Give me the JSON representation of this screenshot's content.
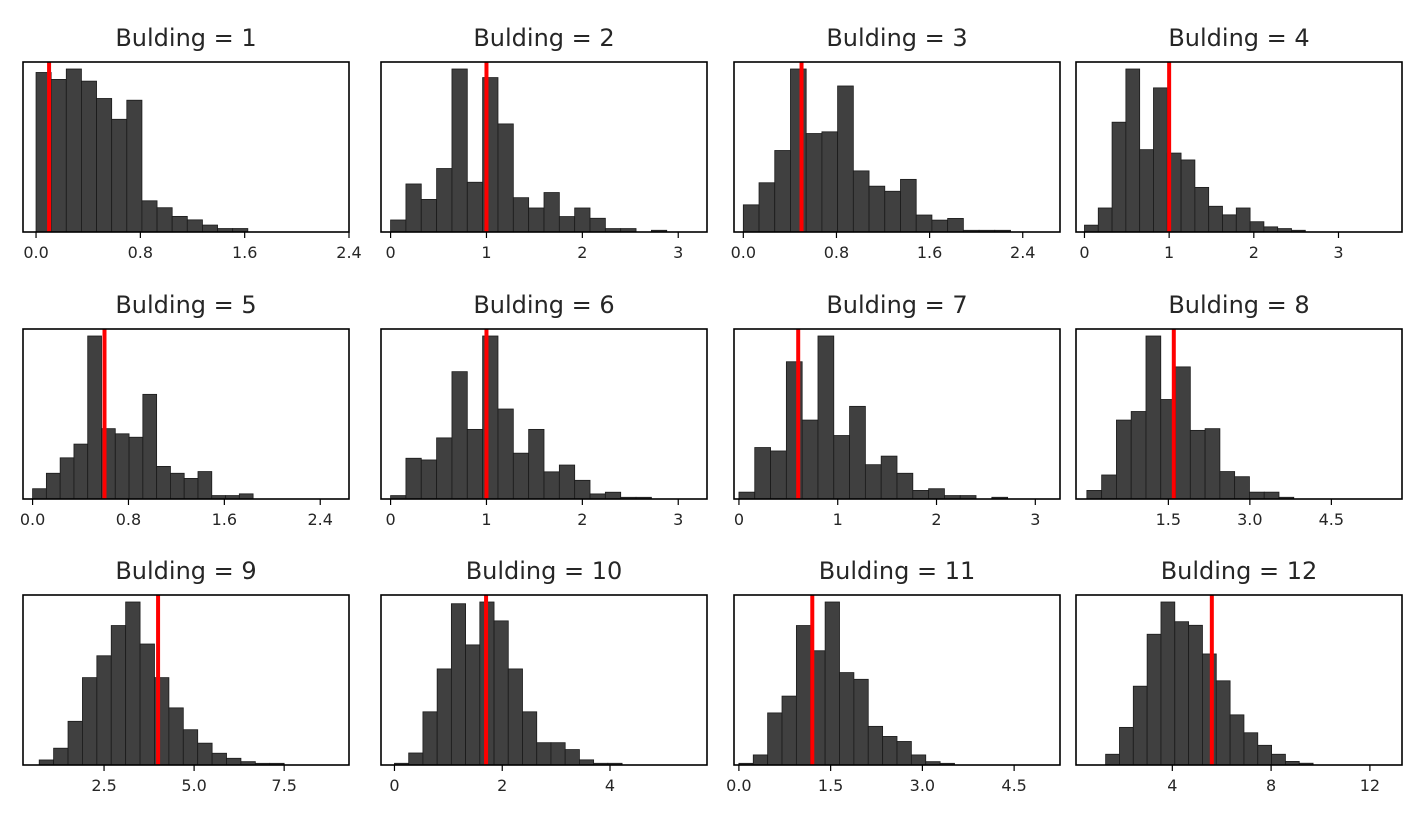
{
  "figure": {
    "background": "#ffffff",
    "bar_color": "#404040",
    "bar_edge": "#1a1a1a",
    "line_color": "#ff0000"
  },
  "chart_data": [
    {
      "type": "bar",
      "title": "Bulding = 1",
      "xlim": [
        -0.1,
        2.4
      ],
      "xticks": [
        0.0,
        0.8,
        1.6,
        2.4
      ],
      "tick_labels": [
        "0.0",
        "0.8",
        "1.6",
        "2.4"
      ],
      "bin_start": 0.0,
      "bin_width": 0.116,
      "counts": [
        92,
        88,
        94,
        87,
        77,
        65,
        76,
        18,
        14,
        9,
        7,
        4,
        2,
        2
      ],
      "marker": 0.1
    },
    {
      "type": "bar",
      "title": "Bulding = 2",
      "xlim": [
        -0.1,
        3.3
      ],
      "xticks": [
        0,
        1,
        2,
        3
      ],
      "tick_labels": [
        "0",
        "1",
        "2",
        "3"
      ],
      "bin_start": 0.0,
      "bin_width": 0.16,
      "counts": [
        7,
        28,
        19,
        37,
        95,
        29,
        90,
        63,
        20,
        14,
        23,
        9,
        14,
        8,
        2,
        2,
        0,
        1
      ],
      "marker": 1.0
    },
    {
      "type": "bar",
      "title": "Bulding = 3",
      "xlim": [
        -0.08,
        2.72
      ],
      "xticks": [
        0.0,
        0.8,
        1.6,
        2.4
      ],
      "tick_labels": [
        "0.0",
        "0.8",
        "1.6",
        "2.4"
      ],
      "bin_start": 0.0,
      "bin_width": 0.135,
      "counts": [
        16,
        29,
        48,
        96,
        58,
        59,
        86,
        36,
        27,
        24,
        31,
        10,
        7,
        8,
        1,
        1,
        1
      ],
      "marker": 0.5
    },
    {
      "type": "bar",
      "title": "Bulding = 4",
      "xlim": [
        -0.1,
        3.75
      ],
      "xticks": [
        0,
        1,
        2,
        3
      ],
      "tick_labels": [
        "0",
        "1",
        "2",
        "3"
      ],
      "bin_start": 0.0,
      "bin_width": 0.163,
      "counts": [
        4,
        14,
        64,
        95,
        48,
        84,
        46,
        42,
        26,
        15,
        10,
        14,
        6,
        3,
        2,
        1
      ],
      "marker": 1.0
    },
    {
      "type": "bar",
      "title": "Bulding = 5",
      "xlim": [
        -0.08,
        2.64
      ],
      "xticks": [
        0.0,
        0.8,
        1.6,
        2.4
      ],
      "tick_labels": [
        "0.0",
        "0.8",
        "1.6",
        "2.4"
      ],
      "bin_start": 0.0,
      "bin_width": 0.115,
      "counts": [
        6,
        15,
        24,
        32,
        95,
        41,
        38,
        36,
        61,
        19,
        15,
        12,
        16,
        2,
        2,
        3
      ],
      "marker": 0.6
    },
    {
      "type": "bar",
      "title": "Bulding = 6",
      "xlim": [
        -0.1,
        3.3
      ],
      "xticks": [
        0,
        1,
        2,
        3
      ],
      "tick_labels": [
        "0",
        "1",
        "2",
        "3"
      ],
      "bin_start": 0.0,
      "bin_width": 0.16,
      "counts": [
        2,
        24,
        23,
        36,
        75,
        41,
        96,
        53,
        27,
        41,
        16,
        20,
        11,
        3,
        4,
        1,
        1
      ],
      "marker": 1.0
    },
    {
      "type": "bar",
      "title": "Bulding = 7",
      "xlim": [
        -0.05,
        3.25
      ],
      "xticks": [
        0,
        1,
        2,
        3
      ],
      "tick_labels": [
        "0",
        "1",
        "2",
        "3"
      ],
      "bin_start": 0.0,
      "bin_width": 0.16,
      "counts": [
        4,
        30,
        28,
        80,
        46,
        95,
        37,
        54,
        20,
        25,
        15,
        5,
        6,
        2,
        2,
        0,
        1
      ],
      "marker": 0.6
    },
    {
      "type": "bar",
      "title": "Bulding = 8",
      "xlim": [
        -0.2,
        5.8
      ],
      "xticks": [
        1.5,
        3.0,
        4.5
      ],
      "tick_labels": [
        "1.5",
        "3.0",
        "4.5"
      ],
      "bin_start": 0.0,
      "bin_width": 0.272,
      "counts": [
        5,
        14,
        46,
        51,
        95,
        58,
        77,
        40,
        41,
        16,
        13,
        4,
        4,
        1
      ],
      "marker": 1.6
    },
    {
      "type": "bar",
      "title": "Bulding = 9",
      "xlim": [
        0.25,
        9.3
      ],
      "xticks": [
        2.5,
        5.0,
        7.5
      ],
      "tick_labels": [
        "2.5",
        "5.0",
        "7.5"
      ],
      "bin_start": 0.7,
      "bin_width": 0.4,
      "counts": [
        3,
        10,
        26,
        52,
        65,
        83,
        97,
        72,
        52,
        34,
        21,
        13,
        7,
        4,
        2,
        1,
        1
      ],
      "marker": 4.0
    },
    {
      "type": "bar",
      "title": "Bulding = 10",
      "xlim": [
        -0.25,
        5.8
      ],
      "xticks": [
        0,
        2,
        4
      ],
      "tick_labels": [
        "0",
        "2",
        "4"
      ],
      "bin_start": 0.0,
      "bin_width": 0.264,
      "counts": [
        1,
        7,
        31,
        56,
        94,
        70,
        95,
        84,
        56,
        31,
        13,
        13,
        9,
        3,
        1,
        1
      ],
      "marker": 1.7
    },
    {
      "type": "bar",
      "title": "Bulding = 11",
      "xlim": [
        -0.08,
        5.25
      ],
      "xticks": [
        0.0,
        1.5,
        3.0,
        4.5
      ],
      "tick_labels": [
        "0.0",
        "1.5",
        "3.0",
        "4.5"
      ],
      "bin_start": 0.0,
      "bin_width": 0.235,
      "counts": [
        1,
        6,
        31,
        41,
        83,
        68,
        97,
        55,
        51,
        23,
        17,
        14,
        6,
        2,
        1
      ],
      "marker": 1.2
    },
    {
      "type": "bar",
      "title": "Bulding = 12",
      "xlim": [
        0.1,
        13.3
      ],
      "xticks": [
        4,
        8,
        12
      ],
      "tick_labels": [
        "4",
        "8",
        "12"
      ],
      "bin_start": 1.3,
      "bin_width": 0.56,
      "counts": [
        6,
        21,
        44,
        73,
        91,
        80,
        78,
        62,
        47,
        28,
        18,
        11,
        6,
        2,
        1
      ],
      "marker": 5.6
    }
  ]
}
